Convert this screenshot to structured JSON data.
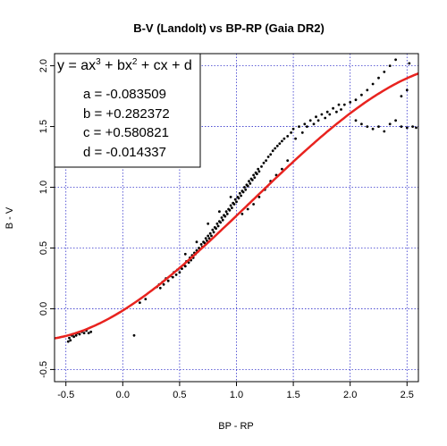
{
  "chart_data": {
    "type": "scatter",
    "title": "B-V (Landolt) vs BP-RP (Gaia DR2)",
    "xlabel": "BP - RP",
    "ylabel": "B - V",
    "xlim": [
      -0.6,
      2.6
    ],
    "ylim": [
      -0.6,
      2.1
    ],
    "x_ticks": [
      "-0.5",
      "0.0",
      "0.5",
      "1.0",
      "1.5",
      "2.0",
      "2.5"
    ],
    "y_ticks": [
      "-0.5",
      "0.0",
      "0.5",
      "1.0",
      "1.5",
      "2.0"
    ],
    "x_tick_values": [
      -0.5,
      0.0,
      0.5,
      1.0,
      1.5,
      2.0,
      2.5
    ],
    "y_tick_values": [
      -0.5,
      0.0,
      0.5,
      1.0,
      1.5,
      2.0
    ],
    "grid": true,
    "grid_color": "#3333cc",
    "point_color": "#000000",
    "fit_color": "#e8231f",
    "fit": {
      "formula": "y = ax^3 + bx^2 + cx + d",
      "coefficients": {
        "a": -0.083509,
        "b": 0.282372,
        "c": 0.580821,
        "d": -0.014337
      },
      "x_range": [
        -0.6,
        2.6
      ]
    },
    "legend": {
      "placement": "top-left",
      "formula_parts": [
        "y = ax",
        "3",
        " + bx",
        "2",
        " + cx + d"
      ],
      "lines": [
        "a = -0.083509",
        "b = +0.282372",
        "c = +0.580821",
        "d = -0.014337"
      ]
    },
    "points": [
      [
        -0.48,
        -0.27
      ],
      [
        -0.47,
        -0.24
      ],
      [
        -0.46,
        -0.26
      ],
      [
        -0.45,
        -0.22
      ],
      [
        -0.44,
        -0.21
      ],
      [
        -0.43,
        -0.23
      ],
      [
        -0.41,
        -0.22
      ],
      [
        -0.4,
        -0.2
      ],
      [
        -0.38,
        -0.21
      ],
      [
        -0.36,
        -0.19
      ],
      [
        -0.34,
        -0.2
      ],
      [
        -0.32,
        -0.18
      ],
      [
        -0.3,
        -0.2
      ],
      [
        -0.28,
        -0.19
      ],
      [
        0.1,
        -0.22
      ],
      [
        0.15,
        0.05
      ],
      [
        0.2,
        0.08
      ],
      [
        0.3,
        0.18
      ],
      [
        0.32,
        0.2
      ],
      [
        0.33,
        0.17
      ],
      [
        0.35,
        0.22
      ],
      [
        0.36,
        0.2
      ],
      [
        0.38,
        0.25
      ],
      [
        0.4,
        0.23
      ],
      [
        0.42,
        0.27
      ],
      [
        0.44,
        0.26
      ],
      [
        0.45,
        0.3
      ],
      [
        0.47,
        0.28
      ],
      [
        0.48,
        0.32
      ],
      [
        0.5,
        0.3
      ],
      [
        0.51,
        0.34
      ],
      [
        0.52,
        0.33
      ],
      [
        0.54,
        0.36
      ],
      [
        0.55,
        0.35
      ],
      [
        0.56,
        0.39
      ],
      [
        0.58,
        0.38
      ],
      [
        0.59,
        0.42
      ],
      [
        0.6,
        0.4
      ],
      [
        0.61,
        0.44
      ],
      [
        0.62,
        0.42
      ],
      [
        0.63,
        0.46
      ],
      [
        0.64,
        0.45
      ],
      [
        0.65,
        0.48
      ],
      [
        0.66,
        0.47
      ],
      [
        0.67,
        0.5
      ],
      [
        0.68,
        0.49
      ],
      [
        0.69,
        0.53
      ],
      [
        0.7,
        0.51
      ],
      [
        0.71,
        0.55
      ],
      [
        0.72,
        0.54
      ],
      [
        0.73,
        0.58
      ],
      [
        0.74,
        0.56
      ],
      [
        0.75,
        0.6
      ],
      [
        0.76,
        0.58
      ],
      [
        0.77,
        0.62
      ],
      [
        0.78,
        0.6
      ],
      [
        0.79,
        0.65
      ],
      [
        0.8,
        0.63
      ],
      [
        0.81,
        0.67
      ],
      [
        0.82,
        0.66
      ],
      [
        0.83,
        0.7
      ],
      [
        0.84,
        0.68
      ],
      [
        0.85,
        0.72
      ],
      [
        0.86,
        0.71
      ],
      [
        0.87,
        0.75
      ],
      [
        0.88,
        0.73
      ],
      [
        0.89,
        0.77
      ],
      [
        0.9,
        0.76
      ],
      [
        0.91,
        0.8
      ],
      [
        0.92,
        0.78
      ],
      [
        0.93,
        0.82
      ],
      [
        0.94,
        0.81
      ],
      [
        0.95,
        0.85
      ],
      [
        0.96,
        0.83
      ],
      [
        0.97,
        0.87
      ],
      [
        0.98,
        0.86
      ],
      [
        0.99,
        0.9
      ],
      [
        1.0,
        0.88
      ],
      [
        1.01,
        0.92
      ],
      [
        1.02,
        0.91
      ],
      [
        1.03,
        0.95
      ],
      [
        1.04,
        0.93
      ],
      [
        1.05,
        0.97
      ],
      [
        1.06,
        0.96
      ],
      [
        1.07,
        1.0
      ],
      [
        1.08,
        0.98
      ],
      [
        1.09,
        1.02
      ],
      [
        1.1,
        1.01
      ],
      [
        1.11,
        1.05
      ],
      [
        1.12,
        1.03
      ],
      [
        1.13,
        1.07
      ],
      [
        1.14,
        1.06
      ],
      [
        1.15,
        1.1
      ],
      [
        1.16,
        1.08
      ],
      [
        1.17,
        1.12
      ],
      [
        1.18,
        1.11
      ],
      [
        1.19,
        1.15
      ],
      [
        1.2,
        1.13
      ],
      [
        1.22,
        1.17
      ],
      [
        1.24,
        1.2
      ],
      [
        1.26,
        1.22
      ],
      [
        1.28,
        1.25
      ],
      [
        1.3,
        1.27
      ],
      [
        1.32,
        1.3
      ],
      [
        1.34,
        1.32
      ],
      [
        1.36,
        1.34
      ],
      [
        1.38,
        1.36
      ],
      [
        1.4,
        1.38
      ],
      [
        1.42,
        1.4
      ],
      [
        1.45,
        1.42
      ],
      [
        1.48,
        1.45
      ],
      [
        1.05,
        0.78
      ],
      [
        1.1,
        0.82
      ],
      [
        1.15,
        0.86
      ],
      [
        1.2,
        0.92
      ],
      [
        1.25,
        0.98
      ],
      [
        1.3,
        1.05
      ],
      [
        1.35,
        1.1
      ],
      [
        1.4,
        1.15
      ],
      [
        1.45,
        1.22
      ],
      [
        0.55,
        0.45
      ],
      [
        0.65,
        0.55
      ],
      [
        0.75,
        0.7
      ],
      [
        0.85,
        0.8
      ],
      [
        0.95,
        0.92
      ],
      [
        1.5,
        1.48
      ],
      [
        1.55,
        1.5
      ],
      [
        1.6,
        1.52
      ],
      [
        1.65,
        1.55
      ],
      [
        1.7,
        1.58
      ],
      [
        1.75,
        1.6
      ],
      [
        1.8,
        1.62
      ],
      [
        1.85,
        1.65
      ],
      [
        1.9,
        1.68
      ],
      [
        1.52,
        1.4
      ],
      [
        1.58,
        1.45
      ],
      [
        1.62,
        1.5
      ],
      [
        1.68,
        1.52
      ],
      [
        1.72,
        1.55
      ],
      [
        1.78,
        1.57
      ],
      [
        1.82,
        1.6
      ],
      [
        1.88,
        1.62
      ],
      [
        1.92,
        1.64
      ],
      [
        1.95,
        1.68
      ],
      [
        2.0,
        1.7
      ],
      [
        2.05,
        1.72
      ],
      [
        2.1,
        1.76
      ],
      [
        2.15,
        1.8
      ],
      [
        2.2,
        1.85
      ],
      [
        2.25,
        1.9
      ],
      [
        2.3,
        1.95
      ],
      [
        2.35,
        2.0
      ],
      [
        2.4,
        2.05
      ],
      [
        2.05,
        1.55
      ],
      [
        2.1,
        1.52
      ],
      [
        2.15,
        1.5
      ],
      [
        2.2,
        1.48
      ],
      [
        2.25,
        1.5
      ],
      [
        2.3,
        1.46
      ],
      [
        2.35,
        1.52
      ],
      [
        2.4,
        1.55
      ],
      [
        2.45,
        1.5
      ],
      [
        2.5,
        1.49
      ],
      [
        2.55,
        1.5
      ],
      [
        2.58,
        1.49
      ],
      [
        2.45,
        1.75
      ],
      [
        2.5,
        1.8
      ],
      [
        2.52,
        2.02
      ]
    ]
  }
}
